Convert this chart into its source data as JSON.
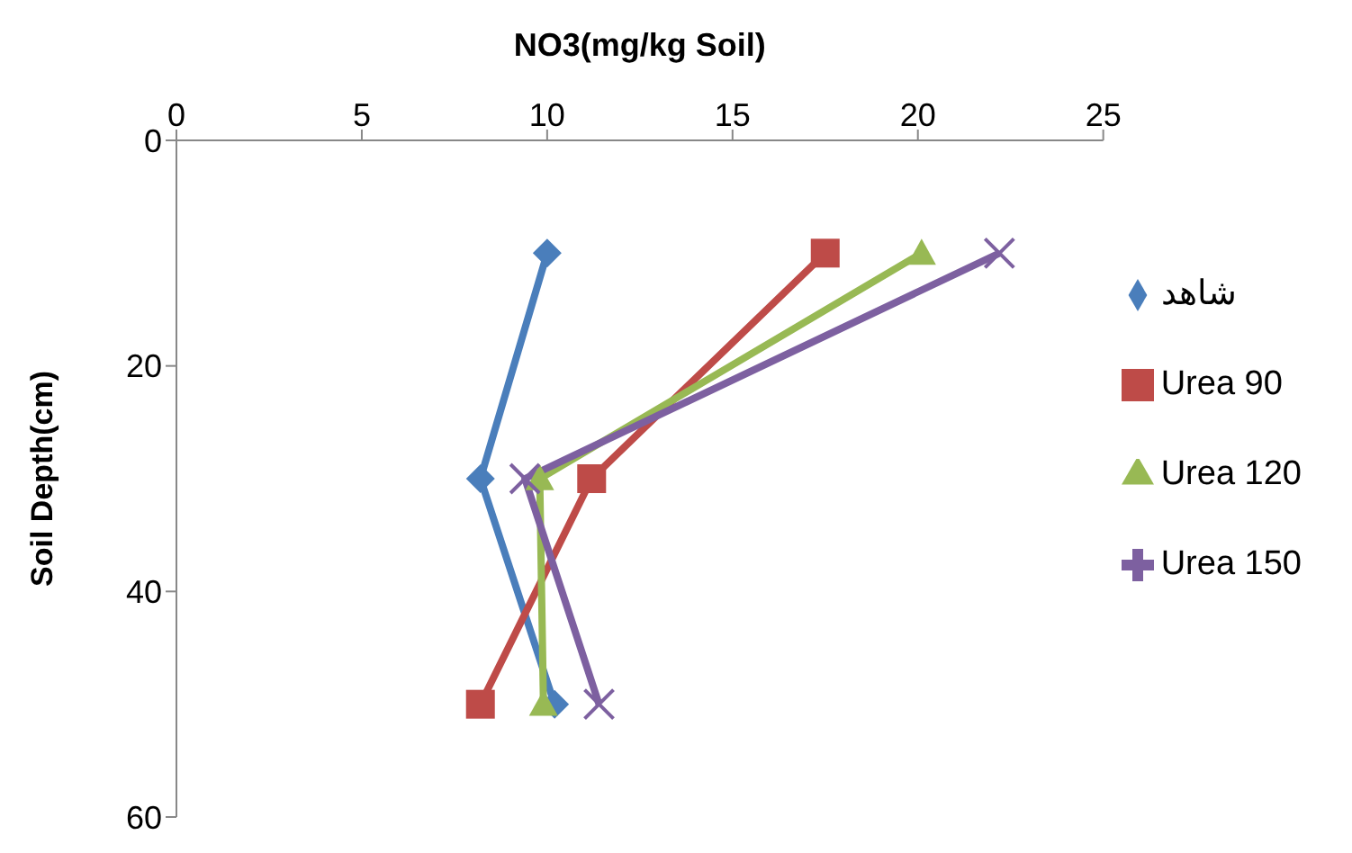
{
  "chart_data": {
    "type": "line",
    "xlabel": "NO3(mg/kg Soil)",
    "ylabel": "Soil Depth(cm)",
    "xlim": [
      0,
      25
    ],
    "xticks": [
      0,
      5,
      10,
      15,
      20,
      25
    ],
    "ylim": [
      60,
      0
    ],
    "yticks": [
      0,
      20,
      40,
      60
    ],
    "grid": false,
    "legend": "right",
    "series": [
      {
        "name": "شاهد",
        "color": "#4a7ebb",
        "marker": "diamond",
        "x": [
          10,
          8.2,
          10.2
        ],
        "values": [
          10,
          30,
          50
        ]
      },
      {
        "name": "Urea 90",
        "color": "#be4b48",
        "marker": "square",
        "x": [
          17.5,
          11.2,
          8.2
        ],
        "values": [
          10,
          30,
          50
        ]
      },
      {
        "name": "Urea 120",
        "color": "#98b954",
        "marker": "triangle",
        "x": [
          20.1,
          9.8,
          9.9
        ],
        "values": [
          10,
          30,
          50
        ]
      },
      {
        "name": "Urea 150",
        "color": "#7d60a0",
        "marker": "cross",
        "x": [
          22.2,
          9.4,
          11.4
        ],
        "values": [
          10,
          30,
          50
        ]
      }
    ]
  }
}
